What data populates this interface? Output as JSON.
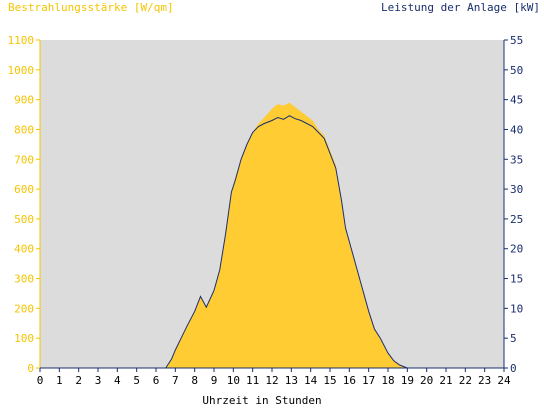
{
  "chart_data": {
    "type": "area",
    "left_axis_title": "Bestrahlungsstärke [W/qm]",
    "right_axis_title": "Leistung der Anlage [kW]",
    "xlabel": "Uhrzeit in Stunden",
    "xlim": [
      0,
      24
    ],
    "x_ticks": [
      "0",
      "1",
      "2",
      "3",
      "4",
      "5",
      "6",
      "7",
      "8",
      "9",
      "10",
      "11",
      "12",
      "13",
      "14",
      "15",
      "16",
      "17",
      "18",
      "19",
      "20",
      "21",
      "22",
      "23",
      "24"
    ],
    "ylim_left": [
      0,
      1100
    ],
    "y_ticks_left": [
      "0",
      "100",
      "200",
      "300",
      "400",
      "500",
      "600",
      "700",
      "800",
      "900",
      "1000",
      "1100"
    ],
    "ylim_right": [
      0,
      55
    ],
    "y_ticks_right": [
      "0",
      "5",
      "10",
      "15",
      "20",
      "25",
      "30",
      "35",
      "40",
      "45",
      "50",
      "55"
    ],
    "grid": false,
    "background_color": "#dcdcdc",
    "series": [
      {
        "axis": "left",
        "style": "area",
        "color": "#ffcc33",
        "x": [
          0,
          6.5,
          6.8,
          7.0,
          7.3,
          7.6,
          8.0,
          8.3,
          8.6,
          9.0,
          9.3,
          9.6,
          9.9,
          10.1,
          10.4,
          10.7,
          11.0,
          11.3,
          11.6,
          12.0,
          12.3,
          12.6,
          12.9,
          13.2,
          13.5,
          13.8,
          14.1,
          14.4,
          14.7,
          15.0,
          15.3,
          15.6,
          15.8,
          16.1,
          16.4,
          16.7,
          17.0,
          17.3,
          17.6,
          18.0,
          18.3,
          18.6,
          19.0,
          24
        ],
        "y": [
          0,
          0,
          30,
          60,
          100,
          140,
          190,
          240,
          205,
          260,
          330,
          450,
          590,
          640,
          700,
          750,
          790,
          820,
          840,
          870,
          885,
          880,
          890,
          875,
          860,
          845,
          830,
          800,
          780,
          730,
          680,
          560,
          470,
          400,
          330,
          260,
          190,
          130,
          100,
          50,
          25,
          10,
          0,
          0
        ]
      },
      {
        "axis": "right",
        "style": "line",
        "color": "#1a2e6e",
        "x": [
          0,
          6.5,
          6.8,
          7.0,
          7.3,
          7.6,
          8.0,
          8.3,
          8.6,
          9.0,
          9.3,
          9.6,
          9.9,
          10.1,
          10.4,
          10.7,
          11.0,
          11.3,
          11.6,
          12.0,
          12.3,
          12.6,
          12.9,
          13.2,
          13.5,
          13.8,
          14.1,
          14.4,
          14.7,
          15.0,
          15.3,
          15.6,
          15.8,
          16.1,
          16.4,
          16.7,
          17.0,
          17.3,
          17.6,
          18.0,
          18.3,
          18.6,
          19.0,
          24
        ],
        "y": [
          0,
          0,
          1.5,
          3,
          5,
          7,
          9.5,
          12,
          10.2,
          13,
          16.5,
          22.5,
          29.5,
          31.5,
          35,
          37.5,
          39.5,
          40.5,
          41,
          41.5,
          42,
          41.7,
          42.3,
          41.8,
          41.5,
          41,
          40.5,
          39.5,
          38.5,
          36,
          33.5,
          28,
          23.5,
          20,
          16.5,
          13,
          9.5,
          6.5,
          5,
          2.5,
          1.2,
          0.5,
          0,
          0
        ]
      }
    ]
  }
}
